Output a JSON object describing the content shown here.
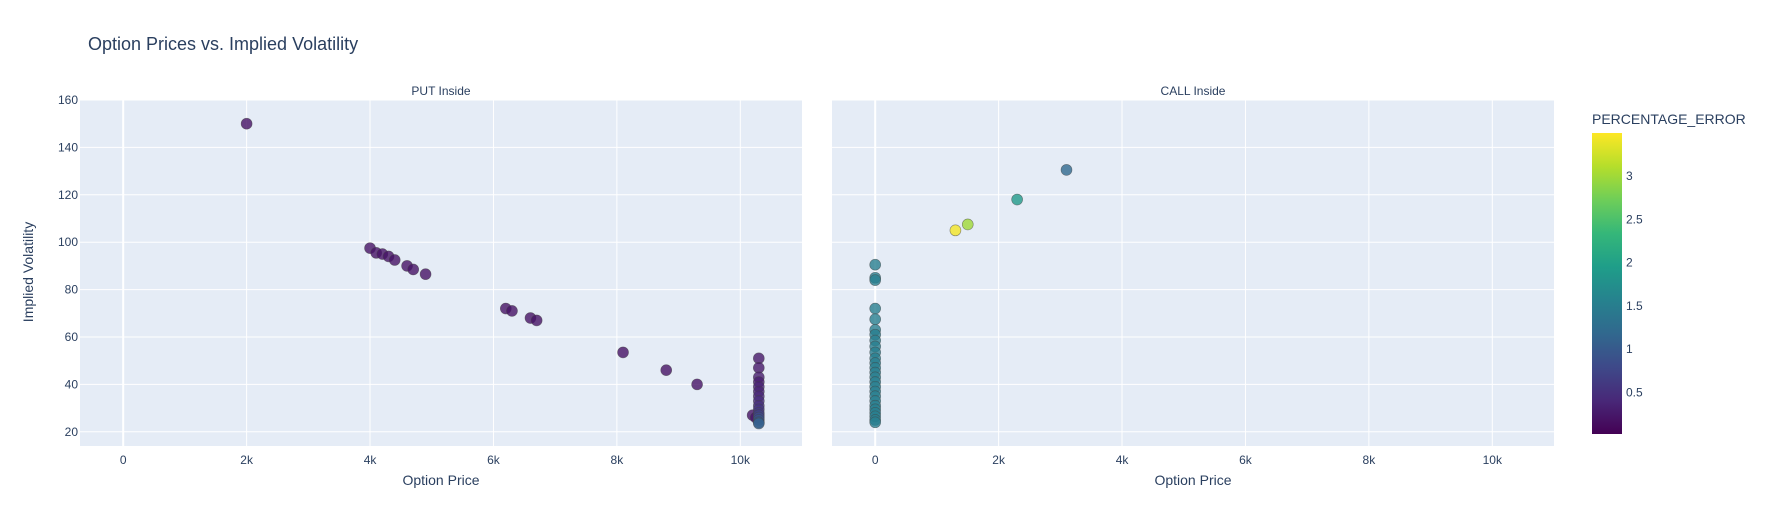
{
  "title": "Option Prices vs. Implied Volatility",
  "chart_data": {
    "type": "scatter",
    "ylabel": "Implied Volatility",
    "ylim": [
      14,
      160
    ],
    "yticks": [
      20,
      40,
      60,
      80,
      100,
      120,
      140,
      160
    ],
    "xlim": [
      -700,
      11000
    ],
    "xticks": [
      0,
      2000,
      4000,
      6000,
      8000,
      10000
    ],
    "xtick_labels": [
      "0",
      "2k",
      "4k",
      "6k",
      "8k",
      "10k"
    ],
    "colorscale": "Viridis",
    "colorbar": {
      "title": "PERCENTAGE_ERROR",
      "range": [
        0.02,
        3.5
      ],
      "ticks": [
        0.5,
        1,
        1.5,
        2,
        2.5,
        3
      ],
      "tick_labels": [
        "0.5",
        "1",
        "1.5",
        "2",
        "2.5",
        "3"
      ]
    },
    "panels": [
      {
        "name": "put",
        "title": "PUT Inside",
        "xlabel": "Option Price",
        "points": [
          {
            "x": 2000,
            "y": 150,
            "c": 0.2
          },
          {
            "x": 4000,
            "y": 97.5,
            "c": 0.2
          },
          {
            "x": 4100,
            "y": 95.5,
            "c": 0.2
          },
          {
            "x": 4200,
            "y": 95,
            "c": 0.2
          },
          {
            "x": 4300,
            "y": 94,
            "c": 0.2
          },
          {
            "x": 4400,
            "y": 92.5,
            "c": 0.2
          },
          {
            "x": 4600,
            "y": 90,
            "c": 0.2
          },
          {
            "x": 4700,
            "y": 88.5,
            "c": 0.2
          },
          {
            "x": 4900,
            "y": 86.5,
            "c": 0.2
          },
          {
            "x": 6200,
            "y": 72,
            "c": 0.2
          },
          {
            "x": 6300,
            "y": 71,
            "c": 0.2
          },
          {
            "x": 6600,
            "y": 68,
            "c": 0.2
          },
          {
            "x": 6700,
            "y": 67,
            "c": 0.2
          },
          {
            "x": 8100,
            "y": 53.5,
            "c": 0.2
          },
          {
            "x": 8800,
            "y": 46,
            "c": 0.2
          },
          {
            "x": 9300,
            "y": 40,
            "c": 0.2
          },
          {
            "x": 10200,
            "y": 27,
            "c": 0.2
          },
          {
            "x": 10250,
            "y": 26,
            "c": 0.2
          },
          {
            "x": 10300,
            "y": 51,
            "c": 0.25
          },
          {
            "x": 10300,
            "y": 47,
            "c": 0.25
          },
          {
            "x": 10300,
            "y": 43,
            "c": 0.3
          },
          {
            "x": 10300,
            "y": 41,
            "c": 0.3
          },
          {
            "x": 10300,
            "y": 39,
            "c": 0.35
          },
          {
            "x": 10300,
            "y": 37,
            "c": 0.35
          },
          {
            "x": 10300,
            "y": 35,
            "c": 0.4
          },
          {
            "x": 10300,
            "y": 33,
            "c": 0.45
          },
          {
            "x": 10300,
            "y": 31,
            "c": 0.5
          },
          {
            "x": 10300,
            "y": 29.5,
            "c": 0.55
          },
          {
            "x": 10300,
            "y": 28,
            "c": 0.6
          },
          {
            "x": 10300,
            "y": 27,
            "c": 0.7
          },
          {
            "x": 10300,
            "y": 26,
            "c": 0.8
          },
          {
            "x": 10300,
            "y": 25,
            "c": 0.9
          },
          {
            "x": 10300,
            "y": 24,
            "c": 1.0
          },
          {
            "x": 10300,
            "y": 23.5,
            "c": 1.1
          }
        ]
      },
      {
        "name": "call",
        "title": "CALL Inside",
        "xlabel": "Option Price",
        "points": [
          {
            "x": 1300,
            "y": 105,
            "c": 3.45
          },
          {
            "x": 1500,
            "y": 107.5,
            "c": 3.0
          },
          {
            "x": 2300,
            "y": 118,
            "c": 1.9
          },
          {
            "x": 3100,
            "y": 130.5,
            "c": 1.2
          },
          {
            "x": 0,
            "y": 90.5,
            "c": 1.5
          },
          {
            "x": 0,
            "y": 85,
            "c": 1.5
          },
          {
            "x": 0,
            "y": 84,
            "c": 1.5
          },
          {
            "x": 0,
            "y": 72,
            "c": 1.5
          },
          {
            "x": 0,
            "y": 67.5,
            "c": 1.5
          },
          {
            "x": 0,
            "y": 63,
            "c": 1.5
          },
          {
            "x": 0,
            "y": 61,
            "c": 1.5
          },
          {
            "x": 0,
            "y": 58.5,
            "c": 1.5
          },
          {
            "x": 0,
            "y": 56,
            "c": 1.5
          },
          {
            "x": 0,
            "y": 53.5,
            "c": 1.5
          },
          {
            "x": 0,
            "y": 51,
            "c": 1.5
          },
          {
            "x": 0,
            "y": 49,
            "c": 1.5
          },
          {
            "x": 0,
            "y": 47,
            "c": 1.5
          },
          {
            "x": 0,
            "y": 45,
            "c": 1.5
          },
          {
            "x": 0,
            "y": 43,
            "c": 1.5
          },
          {
            "x": 0,
            "y": 41,
            "c": 1.5
          },
          {
            "x": 0,
            "y": 39,
            "c": 1.5
          },
          {
            "x": 0,
            "y": 37,
            "c": 1.5
          },
          {
            "x": 0,
            "y": 35,
            "c": 1.5
          },
          {
            "x": 0,
            "y": 33,
            "c": 1.5
          },
          {
            "x": 0,
            "y": 31,
            "c": 1.5
          },
          {
            "x": 0,
            "y": 29.5,
            "c": 1.5
          },
          {
            "x": 0,
            "y": 28,
            "c": 1.5
          },
          {
            "x": 0,
            "y": 26.5,
            "c": 1.5
          },
          {
            "x": 0,
            "y": 25,
            "c": 1.5
          },
          {
            "x": 0,
            "y": 24,
            "c": 1.5
          }
        ]
      }
    ]
  }
}
